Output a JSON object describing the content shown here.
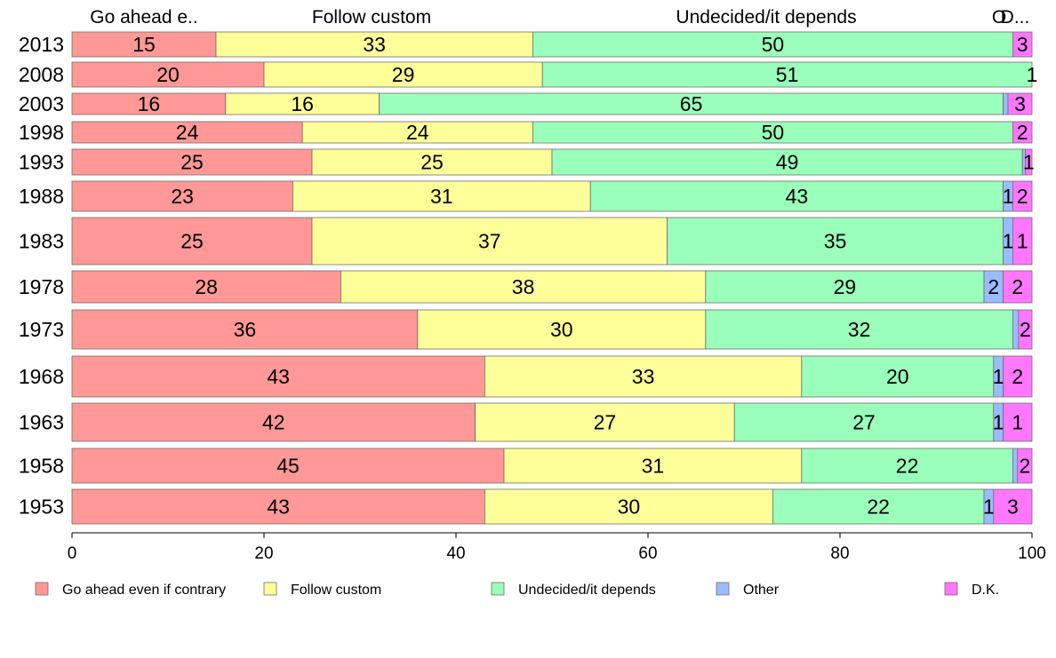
{
  "chart_data": {
    "type": "bar",
    "orientation": "horizontal",
    "stacked": true,
    "categories": [
      "2013",
      "2008",
      "2003",
      "1998",
      "1993",
      "1988",
      "1983",
      "1978",
      "1973",
      "1968",
      "1963",
      "1958",
      "1953"
    ],
    "series": [
      {
        "name": "Go ahead even if contrary",
        "color": "#ff9896",
        "values": [
          15,
          20,
          16,
          24,
          25,
          23,
          25,
          28,
          36,
          43,
          42,
          45,
          43
        ]
      },
      {
        "name": "Follow custom",
        "color": "#ffff99",
        "values": [
          33,
          29,
          16,
          24,
          25,
          31,
          37,
          38,
          30,
          33,
          27,
          31,
          30
        ]
      },
      {
        "name": "Undecided/it depends",
        "color": "#99ffbb",
        "values": [
          50,
          51,
          65,
          50,
          49,
          43,
          35,
          29,
          32,
          20,
          27,
          22,
          22
        ]
      },
      {
        "name": "Other",
        "color": "#99bbff",
        "values": [
          0,
          0,
          0.5,
          0,
          0.3,
          1,
          1,
          2,
          0.6,
          1,
          1,
          0.5,
          1
        ]
      },
      {
        "name": "D.K.",
        "color": "#ff77ff",
        "values": [
          3,
          1,
          3,
          2,
          1,
          2,
          1,
          2,
          2,
          2,
          1,
          2,
          3
        ]
      }
    ],
    "value_labels": [
      [
        "15",
        "33",
        "50",
        "",
        "3"
      ],
      [
        "20",
        "29",
        "51",
        "",
        "1"
      ],
      [
        "16",
        "16",
        "65",
        "",
        "3"
      ],
      [
        "24",
        "24",
        "50",
        "",
        "2"
      ],
      [
        "25",
        "25",
        "49",
        "",
        "1"
      ],
      [
        "23",
        "31",
        "43",
        "1",
        "2"
      ],
      [
        "25",
        "37",
        "35",
        "1",
        "1"
      ],
      [
        "28",
        "38",
        "29",
        "2",
        "2"
      ],
      [
        "36",
        "30",
        "32",
        "",
        "2"
      ],
      [
        "43",
        "33",
        "20",
        "1",
        "2"
      ],
      [
        "42",
        "27",
        "27",
        "1",
        "1"
      ],
      [
        "45",
        "31",
        "22",
        "",
        "2"
      ],
      [
        "43",
        "30",
        "22",
        "1",
        "3"
      ]
    ],
    "top_labels": [
      "Go ahead e..",
      "Follow custom",
      "Undecided/it depends",
      "O",
      "D..."
    ],
    "xlim": [
      0,
      100
    ],
    "xticks": [
      "0",
      "20",
      "40",
      "60",
      "80",
      "100"
    ],
    "legend": {
      "position": "bottom",
      "entries": [
        "Go ahead even if contrary",
        "Follow custom",
        "Undecided/it depends",
        "Other",
        "D.K."
      ]
    },
    "title": "",
    "xlabel": "",
    "ylabel": ""
  }
}
